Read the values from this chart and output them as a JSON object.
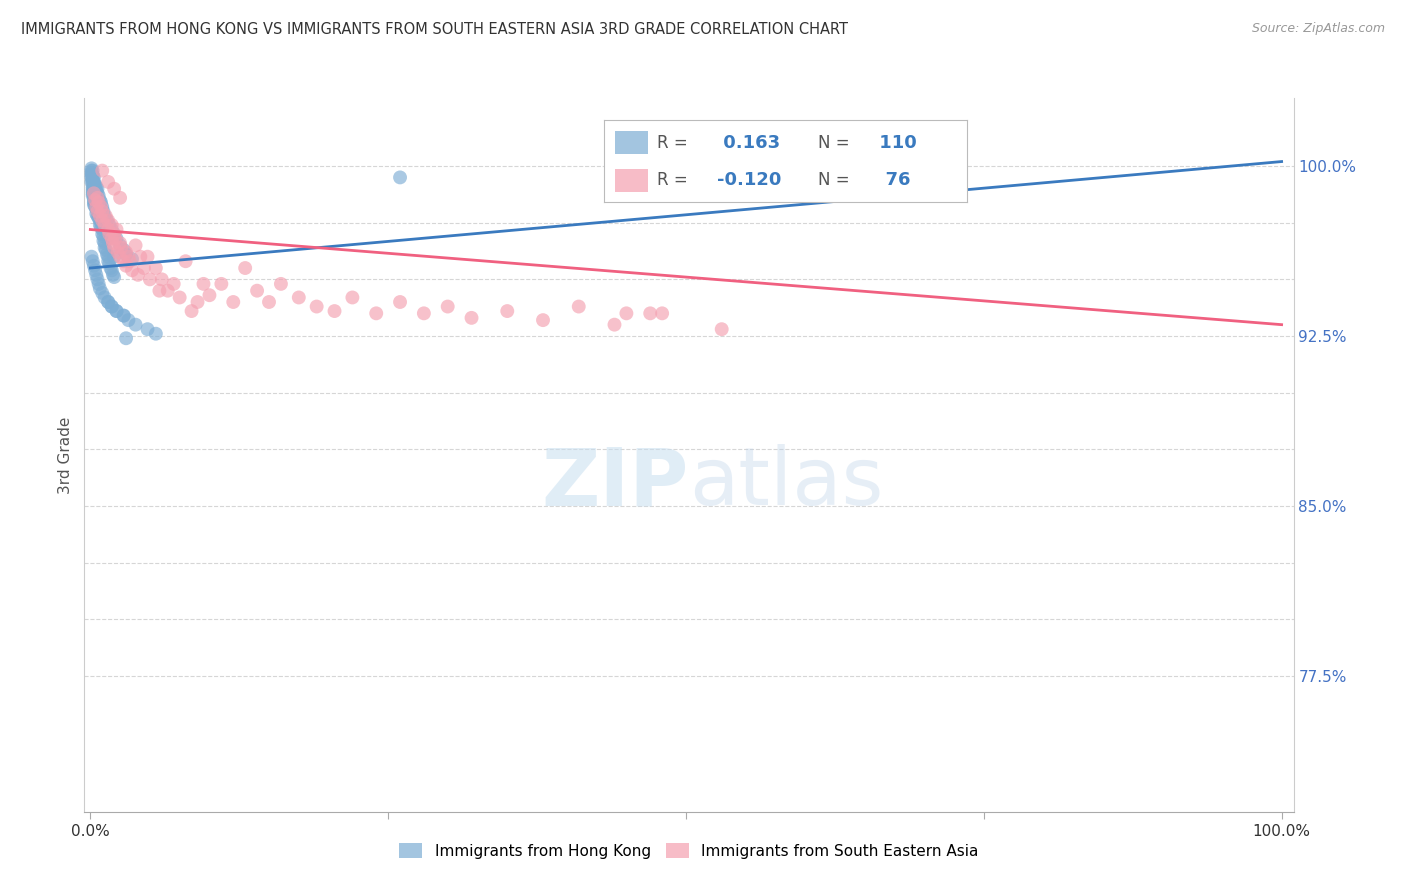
{
  "title": "IMMIGRANTS FROM HONG KONG VS IMMIGRANTS FROM SOUTH EASTERN ASIA 3RD GRADE CORRELATION CHART",
  "source": "Source: ZipAtlas.com",
  "ylabel": "3rd Grade",
  "blue_color": "#7dadd4",
  "pink_color": "#f4a0b0",
  "blue_line_color": "#3a7abf",
  "pink_line_color": "#f06080",
  "legend_R_blue": "0.163",
  "legend_N_blue": "110",
  "legend_R_pink": "-0.120",
  "legend_N_pink": "76",
  "ymin": 0.715,
  "ymax": 1.03,
  "xmin": -0.005,
  "xmax": 1.01,
  "blue_trend_x": [
    0.0,
    1.0
  ],
  "blue_trend_y": [
    0.955,
    1.002
  ],
  "pink_trend_x": [
    0.0,
    1.0
  ],
  "pink_trend_y": [
    0.972,
    0.93
  ],
  "ytick_vals": [
    0.775,
    0.8,
    0.825,
    0.85,
    0.875,
    0.9,
    0.925,
    0.95,
    0.975,
    1.0
  ],
  "ytick_labels": [
    "77.5%",
    "",
    "",
    "85.0%",
    "",
    "",
    "92.5%",
    "",
    "",
    "100.0%"
  ],
  "grid_color": "#cccccc",
  "right_tick_color": "#4472c4",
  "blue_x": [
    0.001,
    0.001,
    0.001,
    0.002,
    0.002,
    0.002,
    0.002,
    0.002,
    0.002,
    0.002,
    0.002,
    0.003,
    0.003,
    0.003,
    0.003,
    0.003,
    0.003,
    0.003,
    0.004,
    0.004,
    0.004,
    0.004,
    0.004,
    0.005,
    0.005,
    0.005,
    0.005,
    0.005,
    0.006,
    0.006,
    0.006,
    0.006,
    0.007,
    0.007,
    0.007,
    0.008,
    0.008,
    0.008,
    0.009,
    0.009,
    0.01,
    0.01,
    0.011,
    0.011,
    0.012,
    0.012,
    0.013,
    0.014,
    0.015,
    0.015,
    0.016,
    0.017,
    0.018,
    0.019,
    0.02,
    0.001,
    0.001,
    0.001,
    0.002,
    0.002,
    0.002,
    0.003,
    0.003,
    0.003,
    0.004,
    0.004,
    0.005,
    0.005,
    0.006,
    0.006,
    0.007,
    0.008,
    0.009,
    0.01,
    0.011,
    0.012,
    0.014,
    0.016,
    0.018,
    0.02,
    0.022,
    0.025,
    0.028,
    0.03,
    0.035,
    0.001,
    0.002,
    0.003,
    0.004,
    0.005,
    0.006,
    0.007,
    0.008,
    0.01,
    0.012,
    0.015,
    0.018,
    0.022,
    0.028,
    0.015,
    0.018,
    0.022,
    0.028,
    0.032,
    0.038,
    0.048,
    0.055,
    0.03,
    0.26,
    0.02
  ],
  "blue_y": [
    0.997,
    0.995,
    0.993,
    0.996,
    0.994,
    0.993,
    0.991,
    0.99,
    0.989,
    0.988,
    0.987,
    0.992,
    0.99,
    0.989,
    0.987,
    0.985,
    0.984,
    0.983,
    0.989,
    0.987,
    0.986,
    0.984,
    0.982,
    0.986,
    0.984,
    0.982,
    0.981,
    0.979,
    0.984,
    0.982,
    0.98,
    0.978,
    0.981,
    0.979,
    0.977,
    0.978,
    0.976,
    0.974,
    0.975,
    0.973,
    0.972,
    0.97,
    0.969,
    0.967,
    0.966,
    0.964,
    0.963,
    0.961,
    0.96,
    0.958,
    0.957,
    0.955,
    0.954,
    0.952,
    0.951,
    0.999,
    0.998,
    0.996,
    0.998,
    0.996,
    0.994,
    0.995,
    0.993,
    0.991,
    0.992,
    0.99,
    0.991,
    0.989,
    0.99,
    0.988,
    0.987,
    0.985,
    0.984,
    0.982,
    0.98,
    0.978,
    0.976,
    0.974,
    0.972,
    0.97,
    0.968,
    0.965,
    0.963,
    0.961,
    0.959,
    0.96,
    0.958,
    0.956,
    0.954,
    0.952,
    0.95,
    0.948,
    0.946,
    0.944,
    0.942,
    0.94,
    0.938,
    0.936,
    0.934,
    0.94,
    0.938,
    0.936,
    0.934,
    0.932,
    0.93,
    0.928,
    0.926,
    0.924,
    0.995,
    0.96
  ],
  "pink_x": [
    0.003,
    0.004,
    0.005,
    0.006,
    0.006,
    0.007,
    0.008,
    0.009,
    0.01,
    0.01,
    0.012,
    0.013,
    0.015,
    0.015,
    0.016,
    0.018,
    0.018,
    0.019,
    0.02,
    0.02,
    0.021,
    0.022,
    0.023,
    0.025,
    0.025,
    0.026,
    0.028,
    0.03,
    0.03,
    0.032,
    0.033,
    0.035,
    0.038,
    0.04,
    0.042,
    0.045,
    0.048,
    0.05,
    0.055,
    0.058,
    0.06,
    0.065,
    0.07,
    0.075,
    0.08,
    0.085,
    0.09,
    0.095,
    0.1,
    0.11,
    0.12,
    0.13,
    0.14,
    0.15,
    0.16,
    0.175,
    0.19,
    0.205,
    0.22,
    0.24,
    0.26,
    0.28,
    0.3,
    0.32,
    0.35,
    0.38,
    0.41,
    0.44,
    0.48,
    0.53,
    0.01,
    0.015,
    0.02,
    0.025,
    0.45,
    0.47
  ],
  "pink_y": [
    0.988,
    0.985,
    0.982,
    0.986,
    0.98,
    0.984,
    0.978,
    0.982,
    0.976,
    0.98,
    0.974,
    0.978,
    0.972,
    0.976,
    0.97,
    0.968,
    0.974,
    0.966,
    0.964,
    0.97,
    0.968,
    0.972,
    0.962,
    0.966,
    0.96,
    0.964,
    0.958,
    0.962,
    0.956,
    0.96,
    0.958,
    0.954,
    0.965,
    0.952,
    0.96,
    0.955,
    0.96,
    0.95,
    0.955,
    0.945,
    0.95,
    0.945,
    0.948,
    0.942,
    0.958,
    0.936,
    0.94,
    0.948,
    0.943,
    0.948,
    0.94,
    0.955,
    0.945,
    0.94,
    0.948,
    0.942,
    0.938,
    0.936,
    0.942,
    0.935,
    0.94,
    0.935,
    0.938,
    0.933,
    0.936,
    0.932,
    0.938,
    0.93,
    0.935,
    0.928,
    0.998,
    0.993,
    0.99,
    0.986,
    0.935,
    0.935
  ]
}
